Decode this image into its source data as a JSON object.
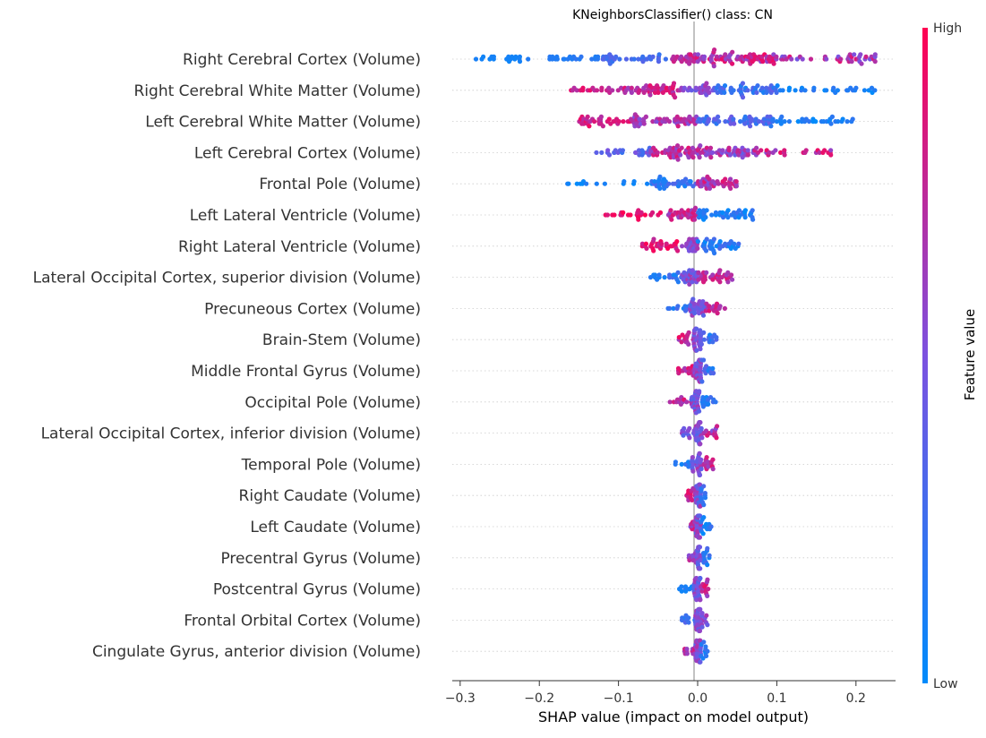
{
  "chart_data": {
    "type": "scatter",
    "subtype": "shap-beeswarm",
    "title": "KNeighborsClassifier() class: CN",
    "xlabel": "SHAP value (impact on model output)",
    "xlim": [
      -0.31,
      0.25
    ],
    "xticks": [
      -0.3,
      -0.2,
      -0.1,
      0.0,
      0.1,
      0.2
    ],
    "xtick_labels": [
      "−0.3",
      "−0.2",
      "−0.1",
      "0.0",
      "0.1",
      "0.2"
    ],
    "colorbar": {
      "label": "Feature value",
      "high_label": "High",
      "low_label": "Low",
      "low_color": "#008bfb",
      "high_color": "#ff0052"
    },
    "features": [
      {
        "name": "Right Cerebral Cortex (Volume)",
        "clusters": [
          [
            -0.28,
            -0.22,
            18,
            0.05,
            0.1
          ],
          [
            -0.22,
            -0.12,
            22,
            0.1,
            0.2
          ],
          [
            -0.12,
            -0.04,
            32,
            0.2,
            0.35
          ],
          [
            -0.04,
            0.0,
            24,
            0.6,
            0.9
          ],
          [
            0.0,
            0.1,
            70,
            0.55,
            0.95
          ],
          [
            0.1,
            0.23,
            40,
            0.45,
            0.9
          ]
        ]
      },
      {
        "name": "Right Cerebral White Matter (Volume)",
        "clusters": [
          [
            -0.16,
            -0.1,
            20,
            0.7,
            0.95
          ],
          [
            -0.1,
            -0.02,
            50,
            0.6,
            0.95
          ],
          [
            -0.02,
            0.02,
            24,
            0.4,
            0.7
          ],
          [
            0.02,
            0.1,
            50,
            0.1,
            0.4
          ],
          [
            0.1,
            0.23,
            28,
            0.0,
            0.2
          ]
        ]
      },
      {
        "name": "Left Cerebral White Matter (Volume)",
        "clusters": [
          [
            -0.15,
            -0.08,
            36,
            0.7,
            0.95
          ],
          [
            -0.08,
            0.0,
            50,
            0.5,
            0.85
          ],
          [
            0.0,
            0.1,
            56,
            0.15,
            0.45
          ],
          [
            0.1,
            0.2,
            30,
            0.0,
            0.2
          ]
        ]
      },
      {
        "name": "Left Cerebral Cortex  (Volume)",
        "clusters": [
          [
            -0.13,
            -0.06,
            24,
            0.2,
            0.55
          ],
          [
            -0.06,
            0.0,
            46,
            0.55,
            0.9
          ],
          [
            0.0,
            0.08,
            56,
            0.4,
            0.85
          ],
          [
            0.08,
            0.17,
            22,
            0.55,
            0.95
          ]
        ]
      },
      {
        "name": "Frontal Pole (Volume)",
        "clusters": [
          [
            -0.17,
            -0.06,
            14,
            0.0,
            0.15
          ],
          [
            -0.06,
            0.0,
            36,
            0.05,
            0.35
          ],
          [
            0.0,
            0.05,
            40,
            0.5,
            0.9
          ]
        ]
      },
      {
        "name": "Left Lateral Ventricle (Volume)",
        "clusters": [
          [
            -0.13,
            -0.04,
            22,
            0.8,
            1.0
          ],
          [
            -0.04,
            0.0,
            32,
            0.55,
            0.9
          ],
          [
            0.0,
            0.07,
            44,
            0.0,
            0.25
          ]
        ]
      },
      {
        "name": "Right Lateral Ventricle (Volume)",
        "clusters": [
          [
            -0.07,
            -0.02,
            30,
            0.75,
            1.0
          ],
          [
            -0.02,
            0.0,
            22,
            0.4,
            0.7
          ],
          [
            0.0,
            0.055,
            38,
            0.0,
            0.3
          ]
        ]
      },
      {
        "name": "Lateral Occipital Cortex, superior division (Volume)",
        "clusters": [
          [
            -0.06,
            -0.02,
            18,
            0.05,
            0.35
          ],
          [
            -0.02,
            0.0,
            26,
            0.35,
            0.7
          ],
          [
            0.0,
            0.045,
            34,
            0.6,
            0.9
          ]
        ]
      },
      {
        "name": "Precuneous Cortex (Volume)",
        "clusters": [
          [
            -0.04,
            -0.01,
            10,
            0.05,
            0.3
          ],
          [
            -0.01,
            0.01,
            28,
            0.3,
            0.7
          ],
          [
            0.01,
            0.035,
            16,
            0.6,
            0.95
          ]
        ]
      },
      {
        "name": "Brain-Stem (Volume)",
        "clusters": [
          [
            -0.025,
            -0.005,
            14,
            0.6,
            0.95
          ],
          [
            -0.005,
            0.005,
            30,
            0.3,
            0.7
          ],
          [
            0.005,
            0.025,
            12,
            0.05,
            0.35
          ]
        ]
      },
      {
        "name": "Middle Frontal Gyrus (Volume)",
        "clusters": [
          [
            -0.025,
            -0.005,
            14,
            0.6,
            0.95
          ],
          [
            -0.005,
            0.005,
            30,
            0.3,
            0.7
          ],
          [
            0.005,
            0.02,
            12,
            0.1,
            0.4
          ]
        ]
      },
      {
        "name": "Occipital Pole (Volume)",
        "clusters": [
          [
            -0.035,
            -0.008,
            12,
            0.6,
            0.95
          ],
          [
            -0.008,
            0.005,
            28,
            0.3,
            0.7
          ],
          [
            0.005,
            0.025,
            16,
            0.05,
            0.3
          ]
        ]
      },
      {
        "name": "Lateral Occipital Cortex, inferior division (Volume)",
        "clusters": [
          [
            -0.02,
            -0.005,
            12,
            0.3,
            0.7
          ],
          [
            -0.005,
            0.005,
            28,
            0.3,
            0.7
          ],
          [
            0.005,
            0.025,
            14,
            0.5,
            0.9
          ]
        ]
      },
      {
        "name": "Temporal Pole (Volume)",
        "clusters": [
          [
            -0.03,
            -0.008,
            8,
            0.05,
            0.3
          ],
          [
            -0.008,
            0.005,
            26,
            0.35,
            0.7
          ],
          [
            0.005,
            0.02,
            14,
            0.6,
            0.95
          ]
        ]
      },
      {
        "name": "Right Caudate (Volume)",
        "clusters": [
          [
            -0.015,
            -0.003,
            12,
            0.65,
            0.95
          ],
          [
            -0.003,
            0.004,
            26,
            0.3,
            0.7
          ],
          [
            0.004,
            0.012,
            10,
            0.05,
            0.3
          ]
        ]
      },
      {
        "name": "Left Caudate (Volume)",
        "clusters": [
          [
            -0.01,
            -0.002,
            10,
            0.5,
            0.9
          ],
          [
            -0.002,
            0.004,
            26,
            0.3,
            0.7
          ],
          [
            0.004,
            0.018,
            12,
            0.0,
            0.25
          ]
        ]
      },
      {
        "name": "Precentral Gyrus (Volume)",
        "clusters": [
          [
            -0.012,
            -0.002,
            10,
            0.5,
            0.85
          ],
          [
            -0.002,
            0.004,
            26,
            0.3,
            0.7
          ],
          [
            0.004,
            0.018,
            12,
            0.05,
            0.3
          ]
        ]
      },
      {
        "name": "Postcentral Gyrus (Volume)",
        "clusters": [
          [
            -0.025,
            -0.005,
            10,
            0.05,
            0.3
          ],
          [
            -0.005,
            0.004,
            26,
            0.3,
            0.7
          ],
          [
            0.004,
            0.014,
            12,
            0.6,
            0.95
          ]
        ]
      },
      {
        "name": "Frontal Orbital Cortex (Volume)",
        "clusters": [
          [
            -0.02,
            -0.003,
            10,
            0.1,
            0.35
          ],
          [
            -0.003,
            0.004,
            26,
            0.3,
            0.7
          ],
          [
            0.004,
            0.013,
            10,
            0.4,
            0.7
          ]
        ]
      },
      {
        "name": "Cingulate Gyrus, anterior division (Volume)",
        "clusters": [
          [
            -0.018,
            -0.003,
            12,
            0.6,
            0.9
          ],
          [
            -0.003,
            0.004,
            26,
            0.3,
            0.7
          ],
          [
            0.004,
            0.014,
            10,
            0.05,
            0.35
          ]
        ]
      }
    ]
  }
}
